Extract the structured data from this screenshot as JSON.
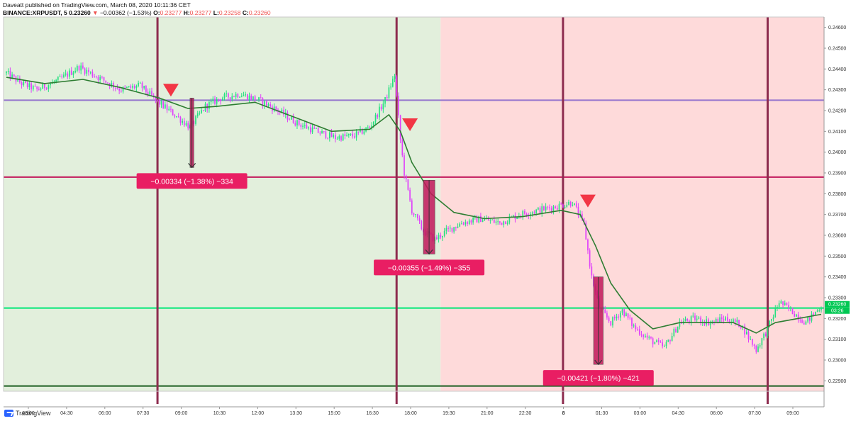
{
  "header": {
    "line1": "Daveatt published on TradingView.com, March 08, 2020 10:11:36 CET",
    "symbol": "BINANCE:XRPUSDT, 5",
    "last": "0.23260",
    "change": "−0.00362 (−1.53%)",
    "o_label": "O:",
    "o": "0.23277",
    "h_label": "H:",
    "h": "0.23277",
    "l_label": "L:",
    "l": "0.23258",
    "c_label": "C:",
    "c": "0.23260"
  },
  "footer": {
    "brand": "TradingView"
  },
  "chart_data": {
    "type": "candlestick",
    "symbol": "BINANCE:XRPUSDT",
    "interval": "5",
    "x_tick_labels": [
      "03:00",
      "04:30",
      "06:00",
      "07:30",
      "09:00",
      "10:30",
      "12:00",
      "13:30",
      "15:00",
      "16:30",
      "18:00",
      "19:30",
      "21:00",
      "22:30",
      "8",
      "01:30",
      "03:00",
      "04:30",
      "06:00",
      "07:30",
      "09:00"
    ],
    "y_tick_labels": [
      "0.22900",
      "0.23000",
      "0.23100",
      "0.23200",
      "0.23300",
      "0.23400",
      "0.23500",
      "0.23600",
      "0.23700",
      "0.23800",
      "0.23900",
      "0.24000",
      "0.24100",
      "0.24200",
      "0.24300",
      "0.24400",
      "0.24500",
      "0.24600"
    ],
    "ylim": [
      0.2285,
      0.2465
    ],
    "last_price_label": "0.23260",
    "countdown_label": "03:26",
    "price_path": [
      [
        0,
        0.2438
      ],
      [
        8,
        0.2433
      ],
      [
        16,
        0.243
      ],
      [
        28,
        0.2435
      ],
      [
        38,
        0.2441
      ],
      [
        50,
        0.2435
      ],
      [
        60,
        0.243
      ],
      [
        70,
        0.2432
      ],
      [
        78,
        0.2425
      ],
      [
        88,
        0.2418
      ],
      [
        96,
        0.2412
      ],
      [
        104,
        0.2422
      ],
      [
        112,
        0.2426
      ],
      [
        122,
        0.2428
      ],
      [
        132,
        0.2425
      ],
      [
        142,
        0.242
      ],
      [
        152,
        0.2414
      ],
      [
        162,
        0.241
      ],
      [
        172,
        0.2407
      ],
      [
        182,
        0.2408
      ],
      [
        190,
        0.2412
      ],
      [
        198,
        0.2425
      ],
      [
        203,
        0.2437
      ],
      [
        206,
        0.2406
      ],
      [
        208,
        0.239
      ],
      [
        212,
        0.2372
      ],
      [
        218,
        0.2362
      ],
      [
        224,
        0.2358
      ],
      [
        230,
        0.2362
      ],
      [
        238,
        0.2366
      ],
      [
        248,
        0.2368
      ],
      [
        258,
        0.2366
      ],
      [
        268,
        0.237
      ],
      [
        278,
        0.2372
      ],
      [
        288,
        0.2374
      ],
      [
        296,
        0.2376
      ],
      [
        302,
        0.2365
      ],
      [
        306,
        0.234
      ],
      [
        310,
        0.2325
      ],
      [
        316,
        0.2318
      ],
      [
        322,
        0.2324
      ],
      [
        328,
        0.2316
      ],
      [
        336,
        0.231
      ],
      [
        344,
        0.2306
      ],
      [
        352,
        0.2318
      ],
      [
        360,
        0.232
      ],
      [
        368,
        0.2318
      ],
      [
        376,
        0.232
      ],
      [
        384,
        0.2317
      ],
      [
        392,
        0.2305
      ],
      [
        398,
        0.2315
      ],
      [
        404,
        0.2328
      ],
      [
        410,
        0.2324
      ],
      [
        418,
        0.2318
      ],
      [
        426,
        0.2326
      ]
    ],
    "moving_average_path": [
      [
        0,
        0.2436
      ],
      [
        20,
        0.2433
      ],
      [
        40,
        0.2435
      ],
      [
        60,
        0.2431
      ],
      [
        80,
        0.2426
      ],
      [
        95,
        0.2421
      ],
      [
        110,
        0.2422
      ],
      [
        130,
        0.2424
      ],
      [
        150,
        0.2417
      ],
      [
        170,
        0.241
      ],
      [
        190,
        0.2411
      ],
      [
        200,
        0.2418
      ],
      [
        206,
        0.241
      ],
      [
        212,
        0.2395
      ],
      [
        222,
        0.238
      ],
      [
        234,
        0.2371
      ],
      [
        250,
        0.2368
      ],
      [
        270,
        0.2369
      ],
      [
        290,
        0.2372
      ],
      [
        300,
        0.237
      ],
      [
        308,
        0.2355
      ],
      [
        316,
        0.2337
      ],
      [
        326,
        0.2324
      ],
      [
        338,
        0.2315
      ],
      [
        352,
        0.2318
      ],
      [
        366,
        0.2318
      ],
      [
        380,
        0.2318
      ],
      [
        392,
        0.2313
      ],
      [
        402,
        0.2318
      ],
      [
        414,
        0.232
      ],
      [
        426,
        0.2322
      ]
    ],
    "horizontal_levels": [
      {
        "price": 0.2425,
        "color": "#9575cd"
      },
      {
        "price": 0.2388,
        "color": "#c2185b"
      },
      {
        "price": 0.2325,
        "color": "#00e676"
      },
      {
        "price": 0.22875,
        "color": "#1b5e20"
      }
    ],
    "vertical_session_lines": [
      79,
      204,
      291,
      398
    ],
    "background_zones": [
      {
        "from": 0,
        "to": 227,
        "color": "#e2efdc"
      },
      {
        "from": 227,
        "to": 426,
        "color": "#fedada"
      }
    ],
    "signal_markers": [
      {
        "bar": 86,
        "price": 0.24298
      },
      {
        "bar": 211,
        "price": 0.24132
      },
      {
        "bar": 304,
        "price": 0.23765
      }
    ],
    "measurements": [
      {
        "from_bar": 96,
        "to_bar": 98,
        "top": 0.2426,
        "bottom": 0.23926,
        "label": "−0.00334 (−1.38%) −334"
      },
      {
        "from_bar": 218,
        "to_bar": 224,
        "top": 0.23865,
        "bottom": 0.2351,
        "label": "−0.00355 (−1.49%) −355"
      },
      {
        "from_bar": 307,
        "to_bar": 312,
        "top": 0.234,
        "bottom": 0.22979,
        "label": "−0.00421 (−1.80%) −421"
      }
    ],
    "colors": {
      "up_candle": "#26e07f",
      "down_candle": "#e040fb",
      "moving_average": "#2e7d32",
      "signal": "#f23645",
      "measure_fill": "#c2185b",
      "measure_label_bg": "#e91e63",
      "session_line": "#8e2c4f",
      "last_price_bg": "#00c853"
    }
  }
}
